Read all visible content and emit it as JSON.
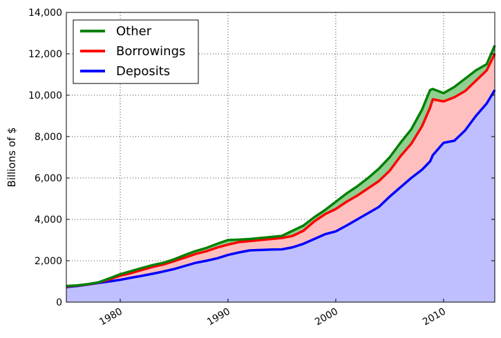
{
  "chart_data": {
    "type": "area",
    "ylabel": "Billions of $",
    "xlim": [
      1975,
      2014.75
    ],
    "ylim": [
      0,
      14000
    ],
    "x_ticks": [
      1980,
      1990,
      2000,
      2010
    ],
    "y_ticks": [
      0,
      2000,
      4000,
      6000,
      8000,
      10000,
      12000,
      14000
    ],
    "x_tick_labels": [
      "1980",
      "1990",
      "2000",
      "2010"
    ],
    "y_tick_labels": [
      "0",
      "2,000",
      "4,000",
      "6,000",
      "8,000",
      "10,000",
      "12,000",
      "14,000"
    ],
    "grid": true,
    "legend_position": "top-left",
    "legend_order": [
      "Other",
      "Borrowings",
      "Deposits"
    ],
    "x": [
      1975,
      1976,
      1977,
      1978,
      1979,
      1980,
      1981,
      1982,
      1983,
      1984,
      1985,
      1986,
      1987,
      1988,
      1989,
      1990,
      1991,
      1992,
      1993,
      1994,
      1995,
      1996,
      1997,
      1998,
      1999,
      2000,
      2001,
      2002,
      2003,
      2004,
      2005,
      2006,
      2007,
      2008,
      2008.75,
      2009,
      2010,
      2011,
      2012,
      2013,
      2014,
      2014.75
    ],
    "series": [
      {
        "name": "Deposits",
        "color": "#0000ff",
        "fill": "#bfbfff",
        "values": [
          730,
          780,
          850,
          930,
          1000,
          1080,
          1180,
          1270,
          1370,
          1480,
          1600,
          1750,
          1900,
          2000,
          2120,
          2280,
          2400,
          2500,
          2520,
          2540,
          2550,
          2650,
          2820,
          3050,
          3280,
          3420,
          3700,
          4000,
          4300,
          4600,
          5100,
          5550,
          6000,
          6400,
          6800,
          7100,
          7700,
          7800,
          8300,
          9000,
          9600,
          10250
        ]
      },
      {
        "name": "Borrowings",
        "color": "#ff0000",
        "fill": "#ffbfbf",
        "values": [
          760,
          800,
          860,
          950,
          1100,
          1280,
          1400,
          1550,
          1700,
          1820,
          1980,
          2150,
          2330,
          2460,
          2640,
          2780,
          2900,
          2950,
          3000,
          3050,
          3100,
          3200,
          3450,
          3900,
          4250,
          4500,
          4850,
          5150,
          5500,
          5850,
          6350,
          7050,
          7650,
          8500,
          9400,
          9800,
          9700,
          9900,
          10200,
          10700,
          11200,
          12000
        ]
      },
      {
        "name": "Other",
        "color": "#008000",
        "fill": "#8fcf8f",
        "values": [
          780,
          810,
          870,
          960,
          1150,
          1350,
          1500,
          1650,
          1790,
          1900,
          2070,
          2280,
          2470,
          2620,
          2820,
          3000,
          3020,
          3050,
          3100,
          3150,
          3200,
          3450,
          3700,
          4100,
          4450,
          4850,
          5250,
          5600,
          6000,
          6450,
          7000,
          7700,
          8350,
          9300,
          10250,
          10300,
          10100,
          10400,
          10800,
          11200,
          11500,
          12400
        ]
      }
    ]
  }
}
